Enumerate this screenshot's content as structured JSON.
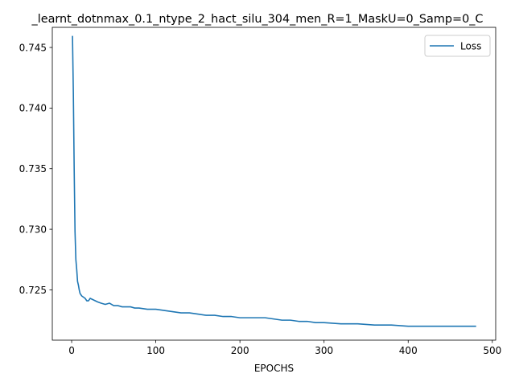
{
  "chart_data": {
    "type": "line",
    "title": "_learnt_dotnmax_0.1_ntype_2_hact_silu_304_men_R=1_MaskU=0_Samp=0_C",
    "xlabel": "EPOCHS",
    "ylabel": "",
    "xlim": [
      -23.0,
      504.0
    ],
    "ylim": [
      0.72085,
      0.74666
    ],
    "xticks": [
      0,
      100,
      200,
      300,
      400,
      500
    ],
    "xtick_labels": [
      "0",
      "100",
      "200",
      "300",
      "400",
      "500"
    ],
    "yticks": [
      0.725,
      0.73,
      0.735,
      0.74,
      0.745
    ],
    "ytick_labels": [
      "0.725",
      "0.730",
      "0.735",
      "0.740",
      "0.745"
    ],
    "grid": false,
    "legend": {
      "position": "top-right",
      "entries": [
        "Loss"
      ]
    },
    "series": [
      {
        "name": "Loss",
        "color": "#1f77b4",
        "x": [
          1,
          2,
          3,
          4,
          5,
          6,
          7,
          8,
          9,
          10,
          12,
          14,
          16,
          18,
          20,
          22,
          25,
          28,
          31,
          35,
          40,
          45,
          50,
          55,
          60,
          65,
          70,
          75,
          80,
          90,
          100,
          110,
          120,
          130,
          140,
          150,
          160,
          170,
          180,
          190,
          200,
          210,
          220,
          225,
          230,
          240,
          250,
          260,
          270,
          280,
          290,
          300,
          320,
          340,
          360,
          380,
          400,
          420,
          440,
          460,
          480
        ],
        "values": [
          0.7459,
          0.7413,
          0.735,
          0.7298,
          0.7275,
          0.7267,
          0.7257,
          0.7254,
          0.725,
          0.7247,
          0.7245,
          0.7244,
          0.7243,
          0.7241,
          0.7241,
          0.7243,
          0.7242,
          0.7241,
          0.724,
          0.7239,
          0.7238,
          0.7239,
          0.7237,
          0.7237,
          0.7236,
          0.7236,
          0.7236,
          0.7235,
          0.7235,
          0.7234,
          0.7234,
          0.7233,
          0.7232,
          0.7231,
          0.7231,
          0.723,
          0.7229,
          0.7229,
          0.7228,
          0.7228,
          0.7227,
          0.7227,
          0.7227,
          0.7227,
          0.7227,
          0.7226,
          0.7225,
          0.7225,
          0.7224,
          0.7224,
          0.7223,
          0.7223,
          0.7222,
          0.7222,
          0.7221,
          0.7221,
          0.722,
          0.722,
          0.722,
          0.722,
          0.722
        ]
      }
    ]
  }
}
